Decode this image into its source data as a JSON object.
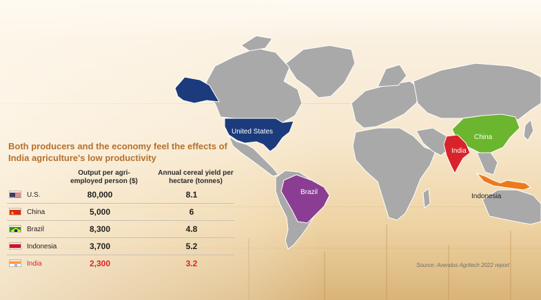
{
  "headline": "Both producers and the economy feel the effects of India agriculture's low productivity",
  "columns": {
    "output": "Output per agri-\nemployed person ($)",
    "yield": "Annual cereal yield per\nhectare (tonnes)"
  },
  "rows": [
    {
      "country": "U.S.",
      "output": "80,000",
      "yield": "8.1",
      "flag": "us-flag-icon",
      "highlight": false
    },
    {
      "country": "China",
      "output": "5,000",
      "yield": "6",
      "flag": "china-flag-icon",
      "highlight": false
    },
    {
      "country": "Brazil",
      "output": "8,300",
      "yield": "4.8",
      "flag": "brazil-flag-icon",
      "highlight": false
    },
    {
      "country": "Indonesia",
      "output": "3,700",
      "yield": "5.2",
      "flag": "indonesia-flag-icon",
      "highlight": false
    },
    {
      "country": "India",
      "output": "2,300",
      "yield": "3.2",
      "flag": "india-flag-icon",
      "highlight": true
    }
  ],
  "map_labels": {
    "us": "United States",
    "china": "China",
    "india": "India",
    "brazil": "Brazil",
    "indonesia": "Indonesia"
  },
  "map_colors": {
    "land": "#a9a9a9",
    "us": "#1b3b7c",
    "china": "#6bb52f",
    "india": "#d8232a",
    "brazil": "#8a3d93",
    "indonesia": "#ec7a1c",
    "headline": "#b5702a",
    "highlight_text": "#d8232a"
  },
  "source": "Source: Avendus Agritech 2022 report"
}
